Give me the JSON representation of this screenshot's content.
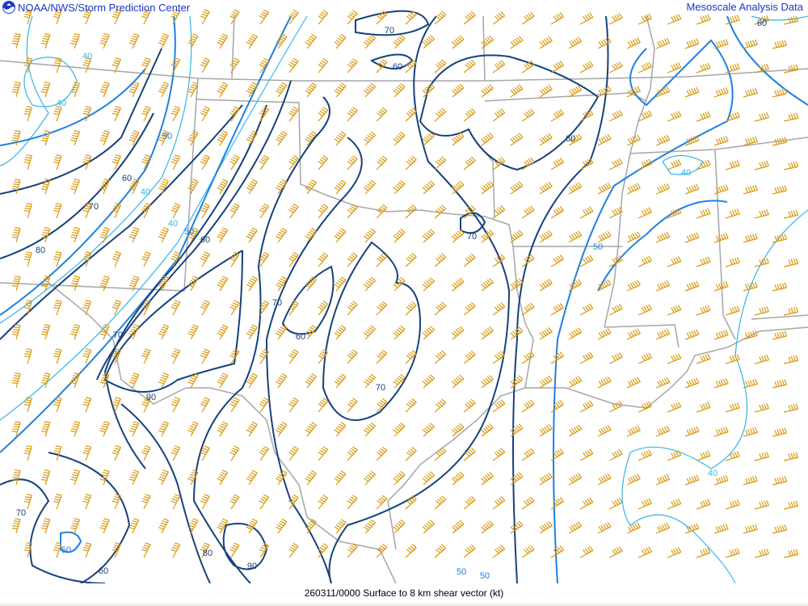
{
  "header": {
    "org_title": "NOAA/NWS/Storm Prediction Center",
    "product_title": "Mesoscale Analysis Data",
    "logo_icon": "noaa-logo-icon"
  },
  "footer": {
    "caption": "260311/0000 Surface to 8 km shear vector (kt)"
  },
  "map": {
    "parameter": "Surface to 8 km shear vector",
    "units": "kt",
    "colors": {
      "barbs": "#d9980f",
      "contour_strong": "#16417c",
      "contour_50": "#1f7fe0",
      "contour_40": "#33b6e6",
      "borders": "#a6a6a6"
    },
    "contour_labels": [
      "70",
      "60",
      "40",
      "40",
      "50",
      "60",
      "40",
      "70",
      "60",
      "40",
      "80",
      "40",
      "50",
      "60",
      "70",
      "50",
      "70",
      "60",
      "70",
      "70",
      "90",
      "40",
      "70",
      "50",
      "60",
      "80",
      "90",
      "50",
      "50",
      "60"
    ]
  }
}
